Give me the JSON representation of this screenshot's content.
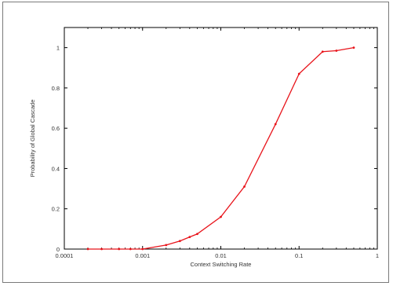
{
  "chart_data": {
    "type": "line",
    "title": "",
    "xlabel": "Context Switching Rate",
    "ylabel": "Probability of Global Cascade",
    "x_scale": "log",
    "xlim": [
      0.0001,
      1
    ],
    "ylim": [
      0,
      1.1
    ],
    "x_ticks": [
      {
        "value": 0.0001,
        "label": "0.0001"
      },
      {
        "value": 0.001,
        "label": "0.001"
      },
      {
        "value": 0.01,
        "label": "0.01"
      },
      {
        "value": 0.1,
        "label": "0.1"
      },
      {
        "value": 1,
        "label": "1"
      }
    ],
    "y_ticks": [
      {
        "value": 0,
        "label": "0"
      },
      {
        "value": 0.2,
        "label": "0.2"
      },
      {
        "value": 0.4,
        "label": "0.4"
      },
      {
        "value": 0.6,
        "label": "0.6"
      },
      {
        "value": 0.8,
        "label": "0.8"
      },
      {
        "value": 1,
        "label": "1"
      }
    ],
    "grid": false,
    "series": [
      {
        "color": "#e8141b",
        "x": [
          0.0002,
          0.0003,
          0.0005,
          0.0007,
          0.001,
          0.002,
          0.003,
          0.004,
          0.005,
          0.01,
          0.02,
          0.05,
          0.1,
          0.2,
          0.3,
          0.5
        ],
        "y": [
          0,
          0,
          0,
          0,
          0,
          0.02,
          0.04,
          0.06,
          0.075,
          0.16,
          0.31,
          0.62,
          0.87,
          0.98,
          0.985,
          1.0
        ]
      }
    ]
  }
}
